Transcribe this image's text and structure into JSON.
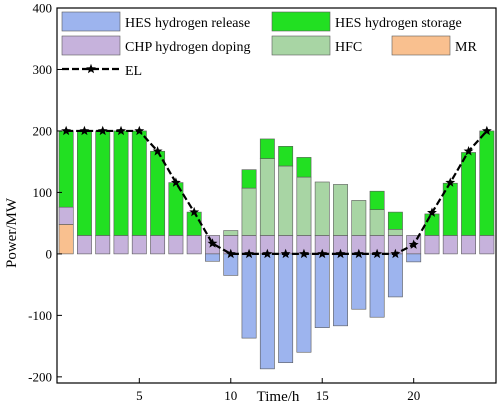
{
  "chart_data": {
    "type": "bar",
    "xlabel": "Time/h",
    "ylabel": "Power/MW",
    "xlim": [
      0.5,
      24.5
    ],
    "ylim": [
      -210,
      400
    ],
    "xticks": [
      5,
      10,
      15,
      20
    ],
    "yticks": [
      -200,
      -100,
      0,
      100,
      200,
      300,
      400
    ],
    "grid": false,
    "legend_position": "top",
    "x": [
      1,
      2,
      3,
      4,
      5,
      6,
      7,
      8,
      9,
      10,
      11,
      12,
      13,
      14,
      15,
      16,
      17,
      18,
      19,
      20,
      21,
      22,
      23,
      24
    ],
    "series": [
      {
        "name": "MR",
        "kind": "bar",
        "color": "#f9c08f",
        "stack": "pos",
        "values": [
          48,
          0,
          0,
          0,
          0,
          0,
          0,
          0,
          0,
          0,
          0,
          0,
          0,
          0,
          0,
          0,
          0,
          0,
          0,
          0,
          0,
          0,
          0,
          0
        ]
      },
      {
        "name": "CHP hydrogen doping",
        "kind": "bar",
        "color": "#c6b2dc",
        "stack": "pos",
        "values": [
          28,
          30,
          30,
          30,
          30,
          30,
          30,
          30,
          30,
          30,
          30,
          30,
          30,
          30,
          30,
          30,
          30,
          30,
          30,
          30,
          30,
          30,
          30,
          30
        ]
      },
      {
        "name": "HFC",
        "kind": "bar",
        "color": "#a8d5a4",
        "stack": "pos",
        "values": [
          0,
          0,
          0,
          0,
          0,
          0,
          0,
          0,
          0,
          8,
          77,
          125,
          113,
          95,
          87,
          83,
          57,
          42,
          10,
          0,
          0,
          0,
          0,
          0
        ]
      },
      {
        "name": "HES hydrogen storage",
        "kind": "bar",
        "color": "#22e022",
        "stack": "pos",
        "values": [
          124,
          170,
          170,
          170,
          170,
          137,
          86,
          38,
          0,
          0,
          30,
          32,
          32,
          32,
          0,
          0,
          0,
          30,
          28,
          0,
          35,
          85,
          135,
          170
        ]
      },
      {
        "name": "HES hydrogen release",
        "kind": "bar",
        "color": "#9db4ee",
        "stack": "neg",
        "values": [
          0,
          0,
          0,
          0,
          0,
          0,
          0,
          0,
          -12,
          -35,
          -137,
          -187,
          -177,
          -160,
          -120,
          -117,
          -90,
          -103,
          -70,
          -13,
          0,
          0,
          0,
          0
        ]
      },
      {
        "name": "EL",
        "kind": "line",
        "color": "#000000",
        "marker": "star",
        "values": [
          200,
          200,
          200,
          200,
          200,
          167,
          116,
          68,
          17,
          0,
          0,
          0,
          0,
          0,
          0,
          0,
          0,
          0,
          0,
          15,
          67,
          116,
          167,
          200
        ]
      }
    ],
    "legend": [
      {
        "name": "HES hydrogen release",
        "color": "#9db4ee",
        "kind": "bar"
      },
      {
        "name": "HES hydrogen storage",
        "color": "#22e022",
        "kind": "bar"
      },
      {
        "name": "CHP hydrogen doping",
        "color": "#c6b2dc",
        "kind": "bar"
      },
      {
        "name": "HFC",
        "color": "#a8d5a4",
        "kind": "bar"
      },
      {
        "name": "MR",
        "color": "#f9c08f",
        "kind": "bar"
      },
      {
        "name": "EL",
        "color": "#000000",
        "kind": "line"
      }
    ]
  }
}
